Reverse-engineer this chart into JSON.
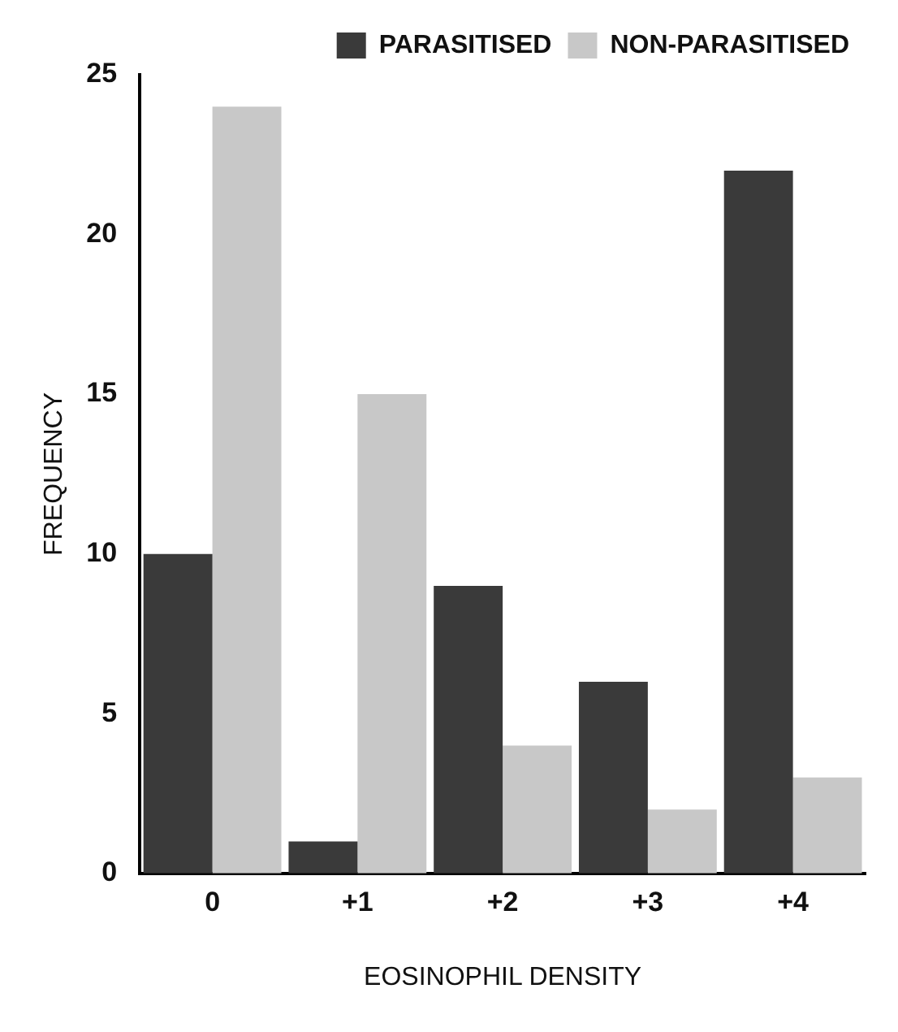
{
  "chart_data": {
    "type": "bar",
    "xlabel": "EOSINOPHIL DENSITY",
    "ylabel": "FREQUENCY",
    "categories": [
      "0",
      "+1",
      "+2",
      "+3",
      "+4"
    ],
    "series": [
      {
        "name": "PARASITISED",
        "color": "#3a3a3a",
        "values": [
          10,
          1,
          9,
          6,
          22
        ]
      },
      {
        "name": "NON-PARASITISED",
        "color": "#c8c8c8",
        "values": [
          24,
          15,
          4,
          2,
          3
        ]
      }
    ],
    "ylim": [
      0,
      25
    ],
    "yticks": [
      0,
      5,
      10,
      15,
      20,
      25
    ],
    "grid": false,
    "legend": "top right"
  }
}
